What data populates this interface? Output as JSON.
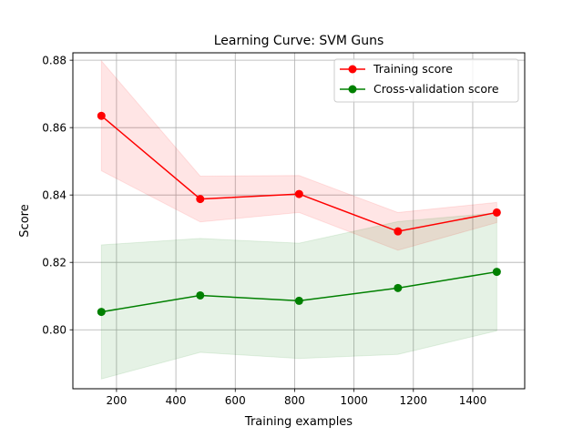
{
  "chart_data": {
    "type": "line",
    "title": "Learning Curve: SVM Guns",
    "xlabel": "Training examples",
    "ylabel": "Score",
    "xlim": [
      53,
      1575
    ],
    "ylim": [
      0.7825,
      0.8822
    ],
    "xticks": [
      200,
      400,
      600,
      800,
      1000,
      1200,
      1400
    ],
    "yticks": [
      0.8,
      0.82,
      0.84,
      0.86,
      0.88
    ],
    "grid": true,
    "legend_position": "upper-right",
    "x": [
      149,
      482,
      815,
      1148,
      1481
    ],
    "series": [
      {
        "name": "Training score",
        "color": "#ff0000",
        "values": [
          0.8635,
          0.8388,
          0.8403,
          0.8292,
          0.8348
        ],
        "band_lower": [
          0.8472,
          0.832,
          0.8348,
          0.8236,
          0.8318
        ],
        "band_upper": [
          0.8798,
          0.8456,
          0.8458,
          0.8348,
          0.8378
        ],
        "band_color": "#ff0000",
        "band_alpha": 0.1
      },
      {
        "name": "Cross-validation score",
        "color": "#008000",
        "values": [
          0.8053,
          0.8102,
          0.8086,
          0.8124,
          0.8172
        ],
        "band_lower": [
          0.7854,
          0.7933,
          0.7915,
          0.7927,
          0.7997
        ],
        "band_upper": [
          0.8252,
          0.8271,
          0.8257,
          0.8321,
          0.8347
        ],
        "band_color": "#008000",
        "band_alpha": 0.1
      }
    ]
  }
}
